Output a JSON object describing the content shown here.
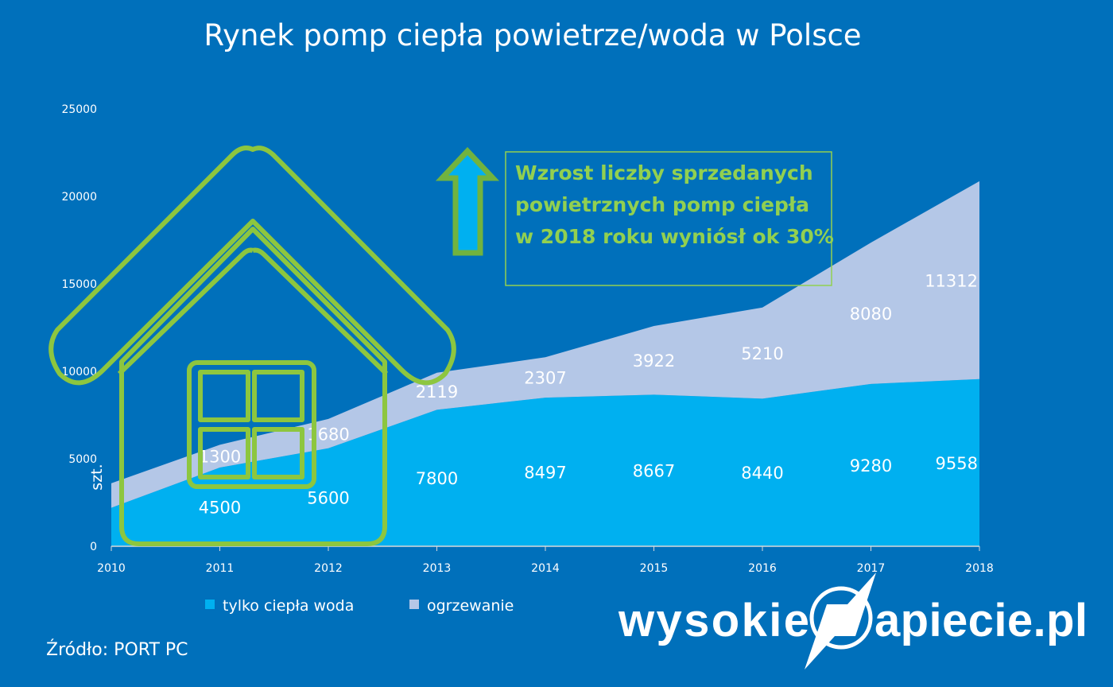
{
  "chart_data": {
    "type": "area",
    "stacked": true,
    "title": "Rynek pomp ciepła powietrze/woda w Polsce",
    "xlabel": "",
    "ylabel": "szt.",
    "ylim": [
      0,
      25000
    ],
    "yticks": [
      "0",
      "5000",
      "10000",
      "15000",
      "20000",
      "25000"
    ],
    "categories": [
      "2010",
      "2011",
      "2012",
      "2013",
      "2014",
      "2015",
      "2016",
      "2017",
      "2018"
    ],
    "series": [
      {
        "name": "tylko ciepła woda",
        "color": "#00b0f0",
        "values": [
          2200,
          4500,
          5600,
          7800,
          8497,
          8667,
          8440,
          9280,
          9558
        ],
        "labels": [
          "",
          "4500",
          "5600",
          "7800",
          "8497",
          "8667",
          "8440",
          "9280",
          "9558"
        ]
      },
      {
        "name": "ogrzewanie",
        "color": "#b4c7e7",
        "values": [
          1400,
          1300,
          1680,
          2119,
          2307,
          3922,
          5210,
          8080,
          11312
        ],
        "labels": [
          "",
          "1300",
          "1680",
          "2119",
          "2307",
          "3922",
          "5210",
          "8080",
          "11312"
        ]
      }
    ],
    "grid": false,
    "legend": "bottom-left",
    "annotation": {
      "lines": [
        "Wzrost liczby sprzedanych",
        "powietrznych pomp ciepła",
        "w 2018 roku wyniósł ok 30%"
      ],
      "color": "#92d050"
    }
  },
  "source": "Źródło: PORT PC",
  "logo": "wysokieNapiecie.pl",
  "colors": {
    "background": "#0070bb",
    "accent": "#92d050"
  }
}
